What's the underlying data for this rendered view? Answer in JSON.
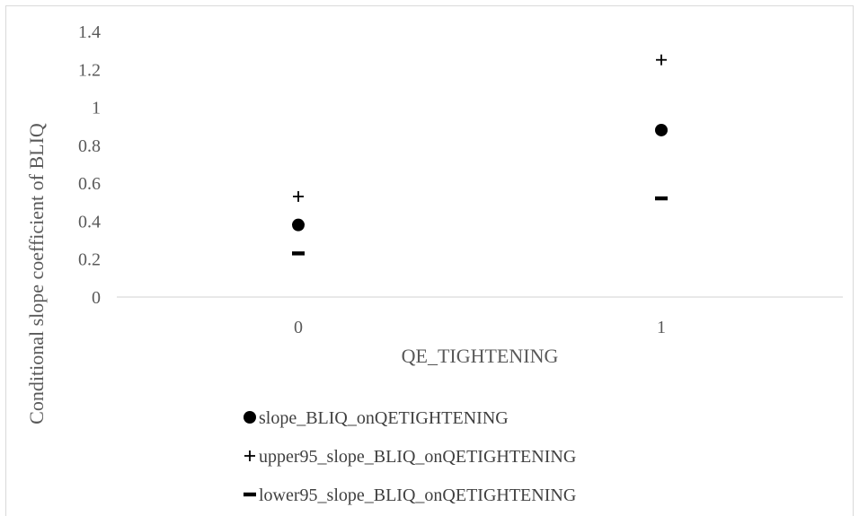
{
  "chart_data": {
    "type": "scatter",
    "title": "",
    "xlabel": "QE_TIGHTENING",
    "ylabel": "Conditional slope coefficient of BLIQ",
    "x_categories": [
      "0",
      "1"
    ],
    "ylim": [
      0,
      1.4
    ],
    "y_ticks": [
      "0",
      "0.2",
      "0.4",
      "0.6",
      "0.8",
      "1",
      "1.2",
      "1.4"
    ],
    "grid": false,
    "legend_position": "bottom",
    "series": [
      {
        "name": "slope_BLIQ_onQETIGHTENING",
        "marker": "circle",
        "color": "#000000",
        "values": [
          0.38,
          0.88
        ]
      },
      {
        "name": "upper95_slope_BLIQ_onQETIGHTENING",
        "marker": "plus",
        "color": "#000000",
        "values": [
          0.53,
          1.25
        ]
      },
      {
        "name": "lower95_slope_BLIQ_onQETIGHTENING",
        "marker": "dash",
        "color": "#000000",
        "values": [
          0.23,
          0.52
        ]
      }
    ]
  }
}
